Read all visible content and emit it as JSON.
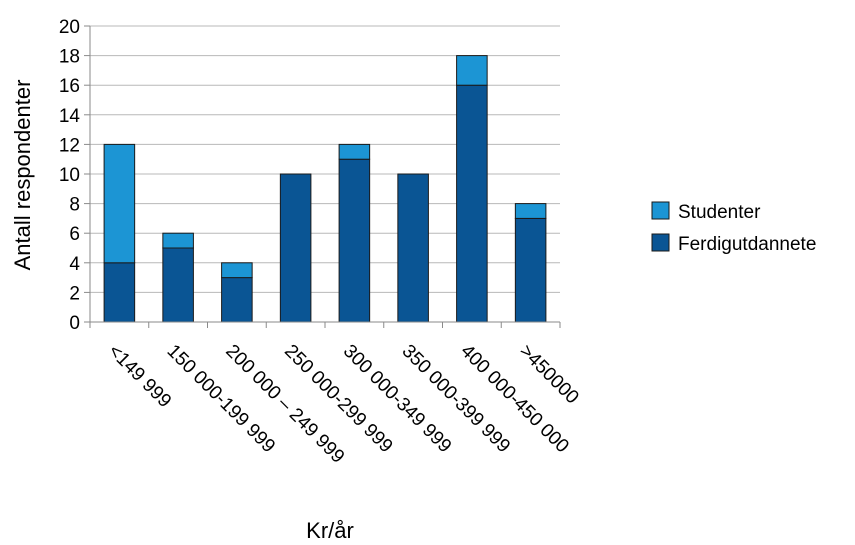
{
  "chart_data": {
    "type": "bar",
    "stacked": true,
    "categories": [
      "<149 999",
      "150 000-199 999",
      "200 000 – 249 999",
      "250 000-299 999",
      "300 000-349 999",
      "350 000-399 999",
      "400 000-450 000",
      ">450000"
    ],
    "series": [
      {
        "name": "Ferdigutdannete",
        "color": "#0a5594",
        "values": [
          4,
          5,
          3,
          10,
          11,
          10,
          16,
          7
        ]
      },
      {
        "name": "Studenter",
        "color": "#1c95d4",
        "values": [
          8,
          1,
          1,
          0,
          1,
          0,
          2,
          1
        ]
      }
    ],
    "legend_order": [
      "Studenter",
      "Ferdigutdannete"
    ],
    "xlabel": "Kr/år",
    "ylabel": "Antall respondenter",
    "ylim": [
      0,
      20
    ],
    "yticks": [
      0,
      2,
      4,
      6,
      8,
      10,
      12,
      14,
      16,
      18,
      20
    ],
    "grid": true,
    "legend_position": "right"
  }
}
